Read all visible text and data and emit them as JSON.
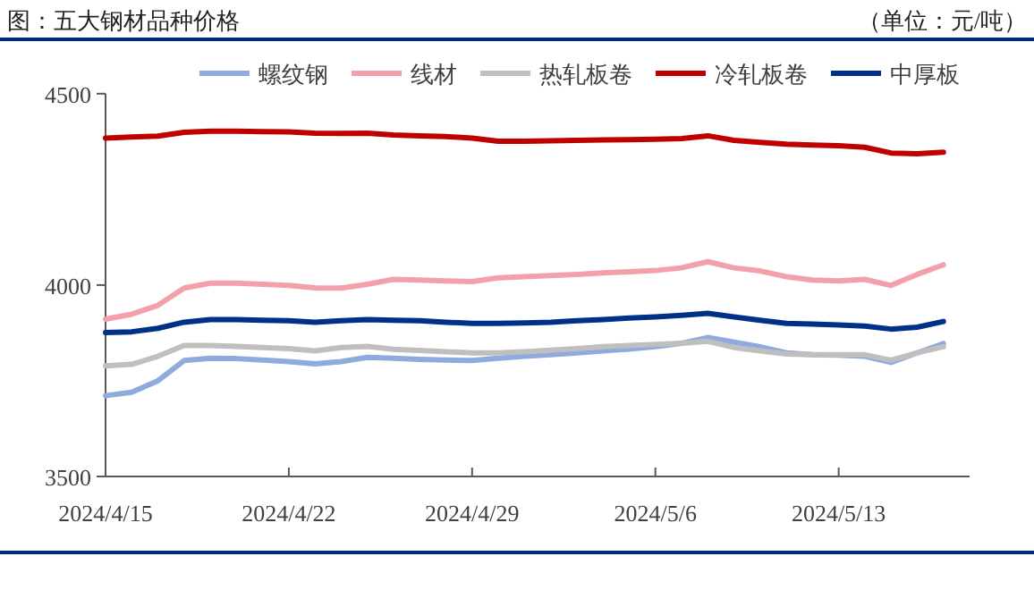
{
  "chart_data": {
    "type": "line",
    "title": "图：五大钢材品种价格",
    "subtitle": "（单位：元/吨）",
    "x": [
      "2024-04-15",
      "2024-04-16",
      "2024-04-17",
      "2024-04-18",
      "2024-04-19",
      "2024-04-20",
      "2024-04-21",
      "2024-04-22",
      "2024-04-23",
      "2024-04-24",
      "2024-04-25",
      "2024-04-26",
      "2024-04-27",
      "2024-04-28",
      "2024-04-29",
      "2024-04-30",
      "2024-05-01",
      "2024-05-02",
      "2024-05-03",
      "2024-05-04",
      "2024-05-05",
      "2024-05-06",
      "2024-05-07",
      "2024-05-08",
      "2024-05-09",
      "2024-05-10",
      "2024-05-11",
      "2024-05-12",
      "2024-05-13",
      "2024-05-14",
      "2024-05-15",
      "2024-05-16",
      "2024-05-17"
    ],
    "xlim": [
      "2024-04-15",
      "2024-05-18"
    ],
    "xticks": [
      {
        "value": "2024-04-15",
        "label": "2024/4/15"
      },
      {
        "value": "2024-04-22",
        "label": "2024/4/22"
      },
      {
        "value": "2024-04-29",
        "label": "2024/4/29"
      },
      {
        "value": "2024-05-06",
        "label": "2024/5/6"
      },
      {
        "value": "2024-05-13",
        "label": "2024/5/13"
      }
    ],
    "ylim": [
      3500,
      4500
    ],
    "yticks": [
      3500,
      4000,
      4500
    ],
    "legend": "top",
    "line_style": "solid",
    "series": [
      {
        "name": "螺纹钢",
        "color": "#8faadc",
        "values": [
          3711,
          3720,
          3750,
          3803,
          3809,
          3808,
          3804,
          3800,
          3794,
          3800,
          3811,
          3809,
          3806,
          3804,
          3803,
          3809,
          3814,
          3818,
          3823,
          3828,
          3833,
          3839,
          3848,
          3863,
          3851,
          3839,
          3823,
          3818,
          3817,
          3814,
          3798,
          3823,
          3847
        ]
      },
      {
        "name": "线材",
        "color": "#f4a0aa",
        "values": [
          3911,
          3924,
          3947,
          3992,
          4005,
          4005,
          4002,
          3999,
          3993,
          3992,
          4002,
          4015,
          4013,
          4011,
          4009,
          4019,
          4022,
          4025,
          4028,
          4032,
          4035,
          4038,
          4045,
          4061,
          4045,
          4037,
          4022,
          4013,
          4011,
          4015,
          3999,
          4028,
          4053
        ]
      },
      {
        "name": "热轧板卷",
        "color": "#bfbfbf",
        "values": [
          3789,
          3793,
          3814,
          3842,
          3842,
          3840,
          3837,
          3834,
          3828,
          3837,
          3840,
          3832,
          3829,
          3826,
          3823,
          3823,
          3826,
          3830,
          3834,
          3839,
          3842,
          3845,
          3848,
          3853,
          3837,
          3828,
          3820,
          3818,
          3818,
          3818,
          3804,
          3823,
          3839
        ]
      },
      {
        "name": "冷轧板卷",
        "color": "#c00000",
        "values": [
          4384,
          4387,
          4389,
          4399,
          4402,
          4402,
          4401,
          4400,
          4397,
          4396,
          4397,
          4392,
          4390,
          4388,
          4384,
          4376,
          4376,
          4377,
          4378,
          4379,
          4380,
          4381,
          4383,
          4390,
          4378,
          4373,
          4368,
          4366,
          4364,
          4360,
          4345,
          4343,
          4347
        ]
      },
      {
        "name": "中厚板",
        "color": "#003087",
        "values": [
          3876,
          3878,
          3887,
          3903,
          3910,
          3910,
          3908,
          3907,
          3903,
          3907,
          3910,
          3908,
          3907,
          3903,
          3900,
          3900,
          3901,
          3903,
          3907,
          3910,
          3914,
          3917,
          3921,
          3926,
          3917,
          3908,
          3900,
          3898,
          3896,
          3893,
          3885,
          3890,
          3905
        ]
      }
    ]
  }
}
